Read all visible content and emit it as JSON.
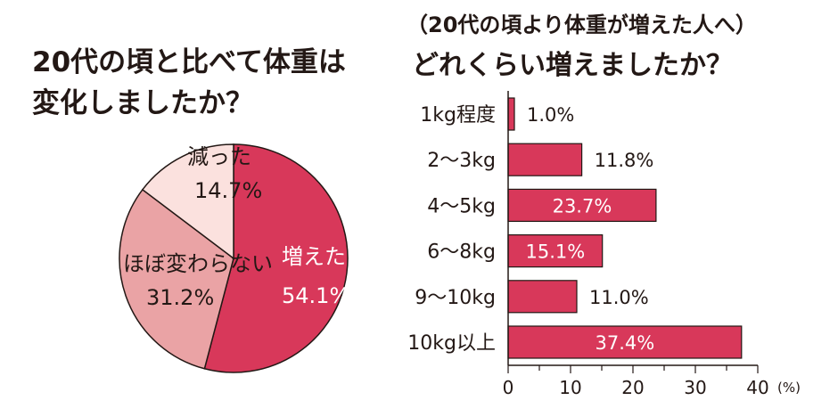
{
  "chart_data": [
    {
      "type": "pie",
      "title_line1": "20代の頃と比べて体重は",
      "title_line2": "変化しましたか？",
      "slices": [
        {
          "name": "増えた",
          "value": 54.1,
          "label": "54.1%",
          "color": "#d8385a"
        },
        {
          "name": "ほぼ変わらない",
          "value": 31.2,
          "label": "31.2%",
          "color": "#eaa3a5"
        },
        {
          "name": "減った",
          "value": 14.7,
          "label": "14.7%",
          "color": "#fbe1de"
        }
      ],
      "edge_color": "#231815"
    },
    {
      "type": "bar",
      "orientation": "horizontal",
      "subtitle": "（20代の頃より体重が増えた人へ）",
      "title": "どれくらい増えましたか？",
      "categories": [
        "1kg程度",
        "2～3kg",
        "4～5kg",
        "6～8kg",
        "9～10kg",
        "10kg以上"
      ],
      "values": [
        1.0,
        11.8,
        23.7,
        15.1,
        11.0,
        37.4
      ],
      "value_labels": [
        "1.0%",
        "11.8%",
        "23.7%",
        "15.1%",
        "11.0%",
        "37.4%"
      ],
      "xlim": [
        0,
        40
      ],
      "xticks": [
        "0",
        "10",
        "20",
        "30",
        "40"
      ],
      "xunit": "(%)",
      "bar_color": "#d8385a",
      "grid": false
    }
  ]
}
